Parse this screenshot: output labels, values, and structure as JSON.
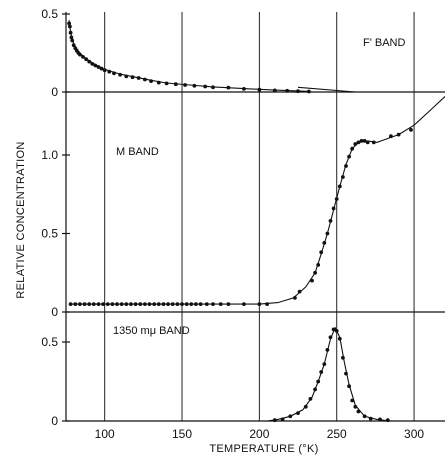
{
  "chart_data": [
    {
      "type": "scatter",
      "panel": "top",
      "label": "F' BAND",
      "ylim": [
        0,
        0.5
      ],
      "yticks": [
        {
          "v": 0,
          "t": "0"
        },
        {
          "v": 0.5,
          "t": "0.5"
        }
      ],
      "xlim": [
        75,
        320
      ],
      "points": [
        [
          77,
          0.44
        ],
        [
          77.5,
          0.42
        ],
        [
          78,
          0.38
        ],
        [
          78.5,
          0.35
        ],
        [
          79,
          0.33
        ],
        [
          80,
          0.3
        ],
        [
          81,
          0.28
        ],
        [
          82,
          0.265
        ],
        [
          83,
          0.25
        ],
        [
          84,
          0.24
        ],
        [
          86,
          0.225
        ],
        [
          88,
          0.21
        ],
        [
          90,
          0.195
        ],
        [
          92,
          0.18
        ],
        [
          94,
          0.17
        ],
        [
          96,
          0.16
        ],
        [
          98,
          0.15
        ],
        [
          100,
          0.14
        ],
        [
          103,
          0.13
        ],
        [
          106,
          0.12
        ],
        [
          110,
          0.11
        ],
        [
          114,
          0.1
        ],
        [
          118,
          0.095
        ],
        [
          122,
          0.09
        ],
        [
          126,
          0.08
        ],
        [
          130,
          0.07
        ],
        [
          135,
          0.06
        ],
        [
          140,
          0.055
        ],
        [
          146,
          0.05
        ],
        [
          152,
          0.045
        ],
        [
          158,
          0.04
        ],
        [
          165,
          0.035
        ],
        [
          170,
          0.03
        ],
        [
          180,
          0.028
        ],
        [
          190,
          0.02
        ],
        [
          200,
          0.015
        ],
        [
          210,
          0.01
        ],
        [
          218,
          0.008
        ],
        [
          225,
          0.005
        ],
        [
          232,
          0.003
        ]
      ],
      "curve": [
        [
          77,
          0.46
        ],
        [
          78,
          0.38
        ],
        [
          80,
          0.31
        ],
        [
          83,
          0.26
        ],
        [
          86,
          0.23
        ],
        [
          90,
          0.2
        ],
        [
          95,
          0.17
        ],
        [
          100,
          0.145
        ],
        [
          110,
          0.115
        ],
        [
          120,
          0.095
        ],
        [
          130,
          0.075
        ],
        [
          140,
          0.058
        ],
        [
          155,
          0.045
        ],
        [
          170,
          0.033
        ],
        [
          190,
          0.022
        ],
        [
          210,
          0.012
        ],
        [
          233,
          0.004
        ]
      ],
      "line": [
        [
          225,
          0.03
        ],
        [
          262,
          0.0
        ]
      ]
    },
    {
      "type": "line",
      "panel": "middle",
      "label": "M BAND",
      "ylim": [
        0,
        1.2
      ],
      "yticks": [
        {
          "v": 0,
          "t": "0"
        },
        {
          "v": 0.5,
          "t": "0.5"
        },
        {
          "v": 1.0,
          "t": "1.0"
        }
      ],
      "xlim": [
        75,
        320
      ],
      "points": [
        [
          78,
          0.05
        ],
        [
          81,
          0.05
        ],
        [
          84,
          0.05
        ],
        [
          87,
          0.05
        ],
        [
          90,
          0.05
        ],
        [
          93,
          0.05
        ],
        [
          96,
          0.05
        ],
        [
          99,
          0.05
        ],
        [
          102,
          0.05
        ],
        [
          105,
          0.05
        ],
        [
          108,
          0.05
        ],
        [
          111,
          0.05
        ],
        [
          114,
          0.05
        ],
        [
          117,
          0.05
        ],
        [
          120,
          0.05
        ],
        [
          123,
          0.05
        ],
        [
          126,
          0.05
        ],
        [
          129,
          0.05
        ],
        [
          132,
          0.05
        ],
        [
          135,
          0.05
        ],
        [
          138,
          0.05
        ],
        [
          141,
          0.05
        ],
        [
          144,
          0.05
        ],
        [
          147,
          0.05
        ],
        [
          150,
          0.05
        ],
        [
          153,
          0.05
        ],
        [
          156,
          0.05
        ],
        [
          159,
          0.05
        ],
        [
          162,
          0.05
        ],
        [
          166,
          0.05
        ],
        [
          170,
          0.05
        ],
        [
          175,
          0.05
        ],
        [
          180,
          0.05
        ],
        [
          190,
          0.05
        ],
        [
          200,
          0.05
        ],
        [
          205,
          0.05
        ],
        [
          223,
          0.09
        ],
        [
          226,
          0.13
        ],
        [
          234,
          0.2
        ],
        [
          236,
          0.25
        ],
        [
          238,
          0.3
        ],
        [
          240,
          0.38
        ],
        [
          242,
          0.44
        ],
        [
          244,
          0.5
        ],
        [
          246,
          0.58
        ],
        [
          248,
          0.66
        ],
        [
          250,
          0.72
        ],
        [
          252,
          0.8
        ],
        [
          254,
          0.86
        ],
        [
          256,
          0.93
        ],
        [
          258,
          0.99
        ],
        [
          260,
          1.04
        ],
        [
          262,
          1.07
        ],
        [
          264,
          1.08
        ],
        [
          266,
          1.09
        ],
        [
          268,
          1.09
        ],
        [
          270,
          1.08
        ],
        [
          274,
          1.08
        ],
        [
          285,
          1.12
        ],
        [
          290,
          1.13
        ],
        [
          298,
          1.16
        ]
      ],
      "curve": [
        [
          78,
          0.05
        ],
        [
          200,
          0.05
        ],
        [
          212,
          0.06
        ],
        [
          222,
          0.09
        ],
        [
          230,
          0.16
        ],
        [
          236,
          0.25
        ],
        [
          240,
          0.37
        ],
        [
          244,
          0.5
        ],
        [
          248,
          0.65
        ],
        [
          252,
          0.8
        ],
        [
          256,
          0.94
        ],
        [
          260,
          1.04
        ],
        [
          264,
          1.08
        ],
        [
          270,
          1.09
        ],
        [
          276,
          1.08
        ],
        [
          290,
          1.13
        ],
        [
          300,
          1.19
        ],
        [
          310,
          1.28
        ],
        [
          323,
          1.4
        ]
      ]
    },
    {
      "type": "line",
      "panel": "bottom",
      "label": "1350 mμ BAND",
      "ylim": [
        0,
        0.6
      ],
      "yticks": [
        {
          "v": 0,
          "t": "0"
        },
        {
          "v": 0.5,
          "t": "0.5"
        }
      ],
      "xlim": [
        75,
        320
      ],
      "xticks": [
        {
          "v": 100,
          "t": "100"
        },
        {
          "v": 150,
          "t": "150"
        },
        {
          "v": 200,
          "t": "200"
        },
        {
          "v": 250,
          "t": "250"
        },
        {
          "v": 300,
          "t": "300"
        }
      ],
      "points": [
        [
          210,
          0.005
        ],
        [
          215,
          0.01
        ],
        [
          220,
          0.03
        ],
        [
          225,
          0.05
        ],
        [
          230,
          0.09
        ],
        [
          233,
          0.14
        ],
        [
          236,
          0.2
        ],
        [
          238,
          0.25
        ],
        [
          240,
          0.31
        ],
        [
          242,
          0.36
        ],
        [
          244,
          0.45
        ],
        [
          246,
          0.53
        ],
        [
          248,
          0.58
        ],
        [
          250,
          0.57
        ],
        [
          252,
          0.52
        ],
        [
          254,
          0.4
        ],
        [
          256,
          0.3
        ],
        [
          258,
          0.22
        ],
        [
          260,
          0.13
        ],
        [
          262,
          0.09
        ],
        [
          264,
          0.06
        ],
        [
          268,
          0.03
        ],
        [
          272,
          0.015
        ],
        [
          278,
          0.01
        ],
        [
          283,
          0.005
        ]
      ],
      "curve": [
        [
          205,
          0.0
        ],
        [
          212,
          0.01
        ],
        [
          220,
          0.03
        ],
        [
          228,
          0.07
        ],
        [
          234,
          0.15
        ],
        [
          238,
          0.25
        ],
        [
          242,
          0.36
        ],
        [
          246,
          0.52
        ],
        [
          249,
          0.59
        ],
        [
          252,
          0.53
        ],
        [
          255,
          0.37
        ],
        [
          258,
          0.23
        ],
        [
          262,
          0.1
        ],
        [
          268,
          0.03
        ],
        [
          276,
          0.01
        ],
        [
          285,
          0.0
        ]
      ]
    }
  ],
  "axes": {
    "ylabel": "RELATIVE CONCENTRATION",
    "xlabel": "TEMPERATURE (°K)"
  }
}
